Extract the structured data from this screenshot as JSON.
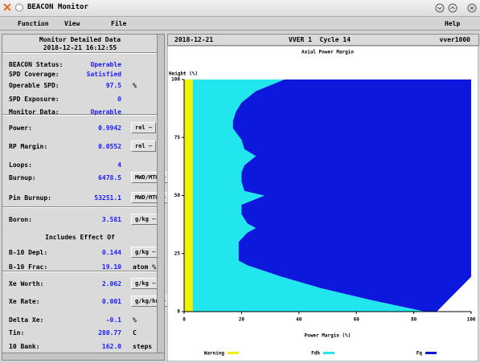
{
  "window": {
    "title": "BEACON Monitor"
  },
  "menu": [
    "Function",
    "View",
    "File",
    "Help"
  ],
  "panel": {
    "title": "Monitor Detailed Data",
    "timestamp": "2018-12-21 16:12:55",
    "rows": [
      {
        "label": "BEACON Status:",
        "value": "Operable"
      },
      {
        "label": "SPD Coverage:",
        "value": "Satisfied"
      },
      {
        "label": "Operable SPD:",
        "value": "97.5",
        "unit": "%"
      },
      {
        "label": "SPD Exposure:",
        "value": "0"
      },
      {
        "label": "Monitor Data:",
        "value": "Operable"
      },
      {
        "label": "Power:",
        "value": "0.9942",
        "menu": "rel"
      },
      {
        "label": "RP Margin:",
        "value": "0.0552",
        "menu": "rel"
      },
      {
        "label": "Loops:",
        "value": "4"
      },
      {
        "label": "Burnup:",
        "value": "6478.5",
        "menu": "MWD/MTU"
      },
      {
        "label": "Pin Burnup:",
        "value": "53251.1",
        "menu": "MWD/MTU"
      },
      {
        "label": "Boron:",
        "value": "3.581",
        "menu": "g/kg"
      },
      {
        "heading": "Includes Effect Of"
      },
      {
        "label": "B-10 Depl:",
        "value": "0.144",
        "menu": "g/kg"
      },
      {
        "label": "B-10 Frac:",
        "value": "19.10",
        "unit": "atom %"
      },
      {
        "label": "Xe Worth:",
        "value": "2.062",
        "menu": "g/kg"
      },
      {
        "label": "Xe Rate:",
        "value": "0.001",
        "menu": "g/kg/hr"
      },
      {
        "label": "Delta Xe:",
        "value": "-0.1",
        "unit": "%"
      },
      {
        "label": "Tin:",
        "value": "280.77",
        "unit": "C"
      },
      {
        "label": "10 Bank:",
        "value": "162.0",
        "unit": "steps"
      }
    ]
  },
  "header": {
    "date": "2018-12-21",
    "unit": "VVER 1  Cycle 14",
    "plant": "vver1000"
  },
  "chart": {
    "type": "area",
    "title": "Axial Power Margin",
    "ylabel": "Height (%)",
    "xlabel": "Power Margin (%)",
    "xlim": [
      0,
      100
    ],
    "ylim": [
      0,
      100
    ],
    "xticks": [
      0,
      20,
      40,
      60,
      80,
      100
    ],
    "yticks": [
      0,
      25,
      50,
      75,
      100
    ],
    "heights": [
      0,
      5,
      10,
      15,
      20,
      22,
      26,
      30,
      34,
      36,
      38,
      42,
      46,
      50,
      52,
      56,
      60,
      63,
      67,
      70,
      74,
      79,
      82,
      86,
      90,
      95,
      100
    ],
    "series": [
      {
        "name": "Warning",
        "color": "#f2f200",
        "values": [
          3,
          3,
          3,
          3,
          3,
          3,
          3,
          3,
          3,
          3,
          3,
          3,
          3,
          3,
          3,
          3,
          3,
          3,
          3,
          3,
          3,
          3,
          3,
          3,
          3,
          3,
          3
        ]
      },
      {
        "name": "Fdh",
        "color": "#22e6ee",
        "values": [
          84,
          65,
          48,
          34,
          22,
          19,
          19,
          19,
          22,
          25,
          22,
          20,
          20,
          28,
          21,
          20,
          20,
          21,
          25,
          21,
          20,
          17,
          17,
          18,
          20,
          25,
          35
        ]
      },
      {
        "name": "Fq",
        "color": "#0c18dc",
        "values": [
          88,
          92,
          96,
          100,
          100,
          100,
          100,
          100,
          100,
          100,
          100,
          100,
          100,
          100,
          100,
          100,
          100,
          100,
          100,
          100,
          100,
          100,
          100,
          100,
          100,
          100,
          100
        ]
      }
    ]
  }
}
